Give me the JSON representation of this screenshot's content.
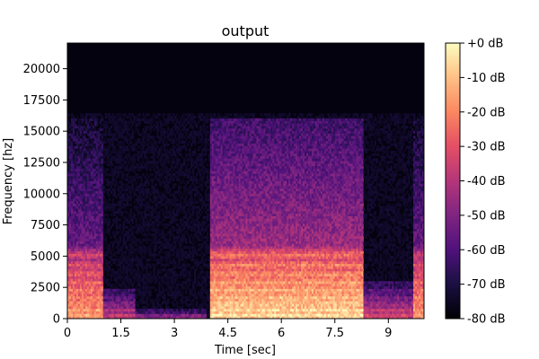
{
  "chart_data": {
    "type": "heatmap",
    "title": "output",
    "xlabel": "Time [sec]",
    "ylabel": "Frequency [hz]",
    "xlim": [
      0,
      10
    ],
    "ylim": [
      0,
      22050
    ],
    "x_ticks": [
      {
        "value": 0,
        "label": "0"
      },
      {
        "value": 1.5,
        "label": "1.5"
      },
      {
        "value": 3,
        "label": "3"
      },
      {
        "value": 4.5,
        "label": "4.5"
      },
      {
        "value": 6,
        "label": "6"
      },
      {
        "value": 7.5,
        "label": "7.5"
      },
      {
        "value": 9,
        "label": "9"
      }
    ],
    "y_ticks": [
      {
        "value": 0,
        "label": "0"
      },
      {
        "value": 2500,
        "label": "2500"
      },
      {
        "value": 5000,
        "label": "5000"
      },
      {
        "value": 7500,
        "label": "7500"
      },
      {
        "value": 10000,
        "label": "10000"
      },
      {
        "value": 12500,
        "label": "12500"
      },
      {
        "value": 15000,
        "label": "15000"
      },
      {
        "value": 17500,
        "label": "17500"
      },
      {
        "value": 20000,
        "label": "20000"
      }
    ],
    "colorbar": {
      "colormap": "magma",
      "range_db": [
        -80,
        0
      ],
      "ticks": [
        {
          "value": 0,
          "label": "+0 dB"
        },
        {
          "value": -10,
          "label": "-10 dB"
        },
        {
          "value": -20,
          "label": "-20 dB"
        },
        {
          "value": -30,
          "label": "-30 dB"
        },
        {
          "value": -40,
          "label": "-40 dB"
        },
        {
          "value": -50,
          "label": "-50 dB"
        },
        {
          "value": -60,
          "label": "-60 dB"
        },
        {
          "value": -70,
          "label": "-70 dB"
        },
        {
          "value": -80,
          "label": "-80 dB"
        }
      ]
    },
    "segments": [
      {
        "t_start": 0.0,
        "t_end": 1.0,
        "max_freq_hz": 16000,
        "level_db": -45
      },
      {
        "t_start": 1.0,
        "t_end": 1.9,
        "max_freq_hz": 2500,
        "level_db": -65
      },
      {
        "t_start": 1.9,
        "t_end": 3.9,
        "max_freq_hz": 800,
        "level_db": -72
      },
      {
        "t_start": 4.0,
        "t_end": 8.3,
        "max_freq_hz": 16000,
        "level_db": -35
      },
      {
        "t_start": 8.3,
        "t_end": 9.7,
        "max_freq_hz": 3000,
        "level_db": -62
      },
      {
        "t_start": 9.7,
        "t_end": 10.0,
        "max_freq_hz": 16000,
        "level_db": -45
      }
    ]
  }
}
